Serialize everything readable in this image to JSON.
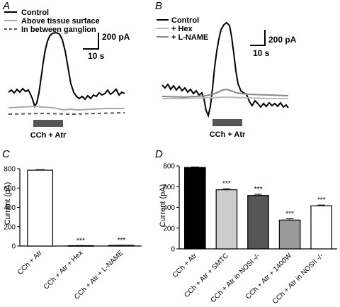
{
  "panels": {
    "A": {
      "letter": "A",
      "legend": [
        {
          "label": "Control",
          "color": "#000000",
          "dash": false
        },
        {
          "label": "Above tissue surface",
          "color": "#aaaaaa",
          "dash": false
        },
        {
          "label": "In between ganglion",
          "color": "#555555",
          "dash": true
        }
      ],
      "scale_current": "200 pA",
      "scale_time": "10 s",
      "stimulus_label": "CCh + Atr",
      "stimulus_color": "#555555"
    },
    "B": {
      "letter": "B",
      "legend": [
        {
          "label": "Control",
          "color": "#000000",
          "dash": false
        },
        {
          "label": "+ Hex",
          "color": "#bbbbbb",
          "dash": false
        },
        {
          "label": "+ L-NAME",
          "color": "#888888",
          "dash": false
        }
      ],
      "scale_current": "200 pA",
      "scale_time": "10 s",
      "stimulus_label": "CCh + Atr",
      "stimulus_color": "#555555"
    },
    "C": {
      "letter": "C"
    },
    "D": {
      "letter": "D"
    }
  },
  "chart_data": [
    {
      "panel": "C",
      "type": "bar",
      "ylabel": "Current (pA)",
      "ylim": [
        0,
        800
      ],
      "yticks": [
        0,
        200,
        400,
        600,
        800
      ],
      "categories": [
        "CCh + Atr",
        "CCh + Atr + Hex",
        "CCh + Atr + L-NAME"
      ],
      "values": [
        785,
        4,
        7
      ],
      "errors": [
        6,
        1,
        1
      ],
      "colors": [
        "#ffffff",
        "#ffffff",
        "#ffffff"
      ],
      "significance": [
        "",
        "***",
        "***"
      ]
    },
    {
      "panel": "D",
      "type": "bar",
      "ylabel": "Current (pA)",
      "ylim": [
        0,
        800
      ],
      "yticks": [
        0,
        200,
        400,
        600,
        800
      ],
      "categories": [
        "CCh + Atr",
        "CCh + Atr + SMTC",
        "CCh + Atr in NOSI -/-",
        "CCh + Atr + 1400W",
        "CCh + Atr in NOSII -/-"
      ],
      "values": [
        785,
        570,
        515,
        278,
        415
      ],
      "errors": [
        5,
        10,
        12,
        12,
        8
      ],
      "colors": [
        "#000000",
        "#cccccc",
        "#555555",
        "#999999",
        "#ffffff"
      ],
      "significance": [
        "",
        "***",
        "***",
        "***",
        "***"
      ]
    }
  ]
}
